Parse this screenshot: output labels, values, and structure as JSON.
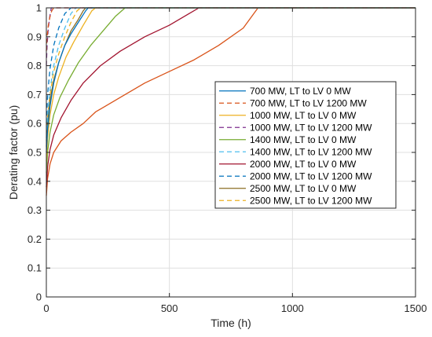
{
  "chart_data": {
    "type": "line",
    "title": "",
    "xlabel": "Time (h)",
    "ylabel": "Derating factor (pu)",
    "xlim": [
      0,
      1500
    ],
    "ylim": [
      0,
      1
    ],
    "xticks": [
      "0",
      "500",
      "1000",
      "1500"
    ],
    "yticks": [
      "0",
      "0.1",
      "0.2",
      "0.3",
      "0.4",
      "0.5",
      "0.6",
      "0.7",
      "0.8",
      "0.9",
      "1"
    ],
    "grid": true,
    "legend_position": "right",
    "series": [
      {
        "name": "700 MW, LT to LV 0 MW",
        "color": "#0072BD",
        "dash": "solid",
        "x": [
          0,
          5,
          15,
          30,
          50,
          75,
          100,
          130,
          160,
          170,
          1500
        ],
        "y": [
          0.5,
          0.58,
          0.66,
          0.74,
          0.81,
          0.87,
          0.91,
          0.95,
          0.99,
          1.0,
          1.0
        ]
      },
      {
        "name": "700 MW, LT to LV 1200 MW",
        "color": "#D95319",
        "dash": "dashed",
        "x": [
          0,
          3,
          8,
          15,
          22,
          30,
          1500
        ],
        "y": [
          0.85,
          0.9,
          0.94,
          0.97,
          0.99,
          1.0,
          1.0
        ]
      },
      {
        "name": "1000 MW, LT to LV 0 MW",
        "color": "#EDB120",
        "dash": "solid",
        "x": [
          0,
          5,
          15,
          30,
          50,
          80,
          110,
          150,
          185,
          200,
          1500
        ],
        "y": [
          0.47,
          0.55,
          0.63,
          0.7,
          0.76,
          0.83,
          0.88,
          0.94,
          0.99,
          1.0,
          1.0
        ]
      },
      {
        "name": "1000 MW, LT to LV 1200 MW",
        "color": "#7E2F8E",
        "dash": "dashed",
        "x": [
          0,
          3,
          8,
          14,
          20,
          1500
        ],
        "y": [
          0.8,
          0.87,
          0.93,
          0.97,
          1.0,
          1.0
        ]
      },
      {
        "name": "1400 MW, LT to LV 0 MW",
        "color": "#77AC30",
        "dash": "solid",
        "x": [
          0,
          5,
          15,
          30,
          55,
          90,
          130,
          180,
          230,
          280,
          320,
          1500
        ],
        "y": [
          0.43,
          0.5,
          0.57,
          0.63,
          0.69,
          0.75,
          0.81,
          0.87,
          0.92,
          0.97,
          1.0,
          1.0
        ]
      },
      {
        "name": "1400 MW, LT to LV 1200 MW",
        "color": "#4DBEEE",
        "dash": "dashed",
        "x": [
          0,
          5,
          15,
          30,
          50,
          75,
          100,
          120,
          1500
        ],
        "y": [
          0.55,
          0.63,
          0.72,
          0.8,
          0.87,
          0.93,
          0.98,
          1.0,
          1.0
        ]
      },
      {
        "name": "2000 MW, LT to LV 0 MW",
        "color": "#A2142F",
        "dash": "solid",
        "x": [
          0,
          5,
          15,
          30,
          60,
          100,
          150,
          220,
          300,
          400,
          500,
          580,
          620,
          1500
        ],
        "y": [
          0.38,
          0.45,
          0.51,
          0.56,
          0.62,
          0.68,
          0.74,
          0.8,
          0.85,
          0.9,
          0.94,
          0.98,
          1.0,
          1.0
        ]
      },
      {
        "name": "2000 MW, LT to LV 1200 MW",
        "color": "#0072BD",
        "dash": "dashed",
        "x": [
          0,
          5,
          15,
          30,
          50,
          75,
          100,
          1500
        ],
        "y": [
          0.6,
          0.7,
          0.79,
          0.87,
          0.93,
          0.98,
          1.0,
          1.0
        ]
      },
      {
        "name": "2500 MW, LT to LV 0 MW",
        "color": "#8C6D22",
        "dash": "solid",
        "x": [
          0,
          5,
          15,
          30,
          50,
          75,
          100,
          130,
          150,
          160,
          1500
        ],
        "y": [
          0.52,
          0.6,
          0.68,
          0.75,
          0.81,
          0.87,
          0.92,
          0.96,
          0.99,
          1.0,
          1.0
        ]
      },
      {
        "name": "2500 MW, LT to LV 1200 MW",
        "color": "#EDB120",
        "dash": "dashed",
        "x": [
          0,
          5,
          15,
          30,
          50,
          75,
          100,
          125,
          140,
          1500
        ],
        "y": [
          0.54,
          0.62,
          0.7,
          0.78,
          0.84,
          0.9,
          0.95,
          0.99,
          1.0,
          1.0
        ]
      },
      {
        "name": "",
        "color": "#D95319",
        "dash": "solid",
        "in_legend": false,
        "x": [
          0,
          5,
          15,
          30,
          60,
          100,
          150,
          200,
          300,
          400,
          500,
          600,
          700,
          800,
          860,
          1500
        ],
        "y": [
          0.35,
          0.41,
          0.46,
          0.5,
          0.54,
          0.57,
          0.6,
          0.64,
          0.69,
          0.74,
          0.78,
          0.82,
          0.87,
          0.93,
          1.0,
          1.0
        ]
      }
    ]
  }
}
